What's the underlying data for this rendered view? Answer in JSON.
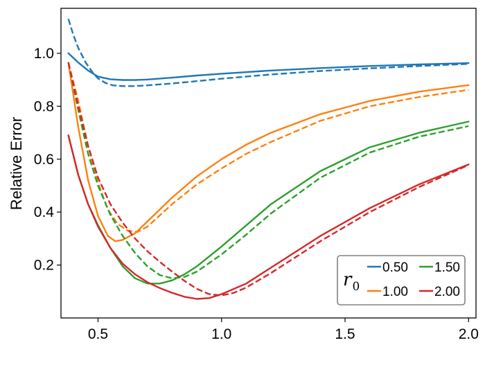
{
  "chart_data": {
    "type": "line",
    "title": "",
    "xlabel": "",
    "ylabel": "Relative Error",
    "xlim": [
      0.35,
      2.03
    ],
    "ylim": [
      0.0,
      1.17
    ],
    "xticks": [
      0.5,
      1.0,
      1.5,
      2.0
    ],
    "xtick_labels": [
      "0.5",
      "1.0",
      "1.5",
      "2.0"
    ],
    "yticks": [
      0.2,
      0.4,
      0.6,
      0.8,
      1.0
    ],
    "ytick_labels": [
      "0.2",
      "0.4",
      "0.6",
      "0.8",
      "1.0"
    ],
    "grid": false,
    "legend": {
      "title_main": "r",
      "title_sub": "0",
      "placement": "lower-right",
      "columns": 2,
      "entries": [
        {
          "label": "0.50",
          "color": "#1f77b4"
        },
        {
          "label": "1.00",
          "color": "#ff7f0e"
        },
        {
          "label": "1.50",
          "color": "#2ca02c"
        },
        {
          "label": "2.00",
          "color": "#d62728"
        }
      ]
    },
    "series": [
      {
        "group": "0.50",
        "style": "solid",
        "color": "#1f77b4",
        "x": [
          0.38,
          0.42,
          0.46,
          0.5,
          0.55,
          0.6,
          0.65,
          0.7,
          0.8,
          0.9,
          1.0,
          1.2,
          1.4,
          1.6,
          1.8,
          2.0
        ],
        "y": [
          1.0,
          0.965,
          0.935,
          0.912,
          0.902,
          0.899,
          0.899,
          0.901,
          0.908,
          0.916,
          0.923,
          0.935,
          0.944,
          0.952,
          0.958,
          0.963
        ]
      },
      {
        "group": "0.50",
        "style": "dashed",
        "color": "#1f77b4",
        "x": [
          0.38,
          0.4,
          0.42,
          0.45,
          0.48,
          0.5,
          0.53,
          0.56,
          0.6,
          0.65,
          0.7,
          0.8,
          0.9,
          1.0,
          1.2,
          1.4,
          1.6,
          1.8,
          2.0
        ],
        "y": [
          1.13,
          1.07,
          1.02,
          0.965,
          0.925,
          0.905,
          0.888,
          0.879,
          0.876,
          0.876,
          0.879,
          0.886,
          0.895,
          0.904,
          0.92,
          0.933,
          0.943,
          0.952,
          0.96
        ]
      },
      {
        "group": "1.00",
        "style": "solid",
        "color": "#ff7f0e",
        "x": [
          0.38,
          0.42,
          0.46,
          0.5,
          0.54,
          0.57,
          0.6,
          0.65,
          0.7,
          0.8,
          0.9,
          1.0,
          1.1,
          1.2,
          1.4,
          1.6,
          1.8,
          2.0
        ],
        "y": [
          0.965,
          0.72,
          0.52,
          0.385,
          0.31,
          0.29,
          0.295,
          0.32,
          0.365,
          0.455,
          0.535,
          0.6,
          0.655,
          0.7,
          0.77,
          0.82,
          0.855,
          0.88
        ]
      },
      {
        "group": "1.00",
        "style": "dashed",
        "color": "#ff7f0e",
        "x": [
          0.38,
          0.42,
          0.46,
          0.5,
          0.54,
          0.58,
          0.62,
          0.66,
          0.7,
          0.8,
          0.9,
          1.0,
          1.1,
          1.2,
          1.4,
          1.6,
          1.8,
          2.0
        ],
        "y": [
          0.965,
          0.82,
          0.65,
          0.51,
          0.41,
          0.355,
          0.33,
          0.325,
          0.345,
          0.43,
          0.505,
          0.565,
          0.62,
          0.665,
          0.745,
          0.8,
          0.835,
          0.862
        ]
      },
      {
        "group": "1.50",
        "style": "solid",
        "color": "#2ca02c",
        "x": [
          0.38,
          0.42,
          0.46,
          0.5,
          0.55,
          0.6,
          0.65,
          0.7,
          0.75,
          0.8,
          0.85,
          0.9,
          1.0,
          1.1,
          1.2,
          1.4,
          1.6,
          1.8,
          2.0
        ],
        "y": [
          0.69,
          0.54,
          0.43,
          0.35,
          0.265,
          0.195,
          0.15,
          0.13,
          0.13,
          0.142,
          0.165,
          0.195,
          0.27,
          0.35,
          0.43,
          0.555,
          0.645,
          0.7,
          0.742
        ]
      },
      {
        "group": "1.50",
        "style": "dashed",
        "color": "#2ca02c",
        "x": [
          0.38,
          0.42,
          0.46,
          0.5,
          0.55,
          0.6,
          0.65,
          0.7,
          0.75,
          0.8,
          0.85,
          0.9,
          1.0,
          1.1,
          1.2,
          1.4,
          1.6,
          1.8,
          2.0
        ],
        "y": [
          0.965,
          0.785,
          0.62,
          0.5,
          0.39,
          0.31,
          0.245,
          0.195,
          0.162,
          0.15,
          0.155,
          0.175,
          0.24,
          0.315,
          0.395,
          0.53,
          0.625,
          0.685,
          0.725
        ]
      },
      {
        "group": "2.00",
        "style": "solid",
        "color": "#d62728",
        "x": [
          0.38,
          0.42,
          0.46,
          0.5,
          0.55,
          0.6,
          0.65,
          0.7,
          0.75,
          0.8,
          0.85,
          0.9,
          0.95,
          1.0,
          1.1,
          1.2,
          1.4,
          1.6,
          1.8,
          2.0
        ],
        "y": [
          0.69,
          0.54,
          0.43,
          0.345,
          0.265,
          0.205,
          0.165,
          0.135,
          0.113,
          0.095,
          0.08,
          0.072,
          0.075,
          0.09,
          0.13,
          0.19,
          0.31,
          0.415,
          0.505,
          0.58
        ]
      },
      {
        "group": "2.00",
        "style": "dashed",
        "color": "#d62728",
        "x": [
          0.38,
          0.42,
          0.46,
          0.5,
          0.55,
          0.6,
          0.65,
          0.7,
          0.75,
          0.8,
          0.85,
          0.9,
          0.95,
          1.0,
          1.05,
          1.1,
          1.2,
          1.4,
          1.6,
          1.8,
          2.0
        ],
        "y": [
          0.965,
          0.8,
          0.65,
          0.53,
          0.43,
          0.36,
          0.3,
          0.252,
          0.212,
          0.175,
          0.14,
          0.11,
          0.09,
          0.085,
          0.095,
          0.115,
          0.17,
          0.29,
          0.4,
          0.495,
          0.578
        ]
      }
    ]
  }
}
